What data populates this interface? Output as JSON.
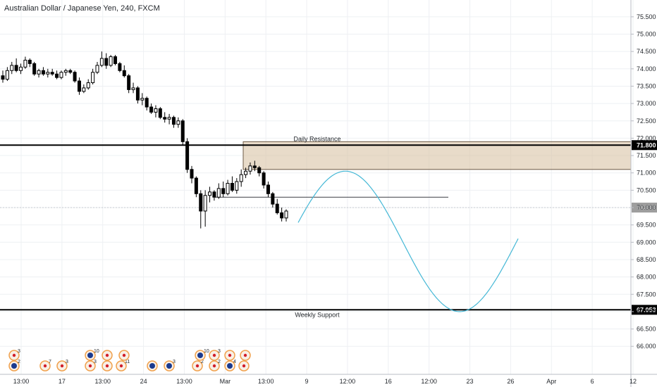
{
  "chart_data": {
    "type": "candlestick",
    "title": "Australian Dollar / Japanese Yen, 240, FXCM",
    "xlabel": "",
    "ylabel": "",
    "ylim": [
      65.7,
      75.7
    ],
    "grid": true,
    "x_ticks": [
      "13:00",
      "17",
      "13:00",
      "24",
      "13:00",
      "Mar",
      "13:00",
      "9",
      "12:00",
      "16",
      "12:00",
      "23",
      "26",
      "Apr",
      "6",
      "12"
    ],
    "y_ticks": [
      "75.500",
      "75.000",
      "74.500",
      "74.000",
      "73.500",
      "73.000",
      "72.500",
      "72.000",
      "71.500",
      "71.000",
      "70.500",
      "70.000",
      "69.500",
      "69.000",
      "68.500",
      "68.000",
      "67.500",
      "67.000",
      "66.500",
      "66.000"
    ],
    "price_levels": [
      {
        "label": "71.800",
        "value": 71.8,
        "color": "#000000"
      },
      {
        "label": "70.000",
        "value": 70.0,
        "color": "#9e9e9e"
      },
      {
        "label": "67.053",
        "value": 67.053,
        "color": "#000000"
      }
    ],
    "zones": [
      {
        "label": "Daily Resistance",
        "from": 71.1,
        "to": 71.9,
        "color": "#d8c3a5"
      }
    ],
    "annotations": [
      {
        "label": "Weekly Support",
        "value": 67.053
      },
      {
        "label": "",
        "value": 70.3,
        "kind": "horizontal-segment"
      }
    ],
    "projection": {
      "kind": "sine-path",
      "start_value": 69.6,
      "peak_value": 71.05,
      "trough_value": 67.0,
      "end_value": 68.7,
      "color": "#45b8d6"
    },
    "series": [
      {
        "values": [
          [
            73.8,
            73.95,
            73.6,
            73.7
          ],
          [
            73.7,
            74.05,
            73.65,
            73.95
          ],
          [
            73.95,
            74.2,
            73.85,
            74.1
          ],
          [
            74.1,
            74.3,
            73.9,
            73.95
          ],
          [
            73.95,
            74.15,
            73.85,
            74.05
          ],
          [
            74.05,
            74.35,
            74.0,
            74.25
          ],
          [
            74.25,
            74.3,
            74.05,
            74.15
          ],
          [
            74.15,
            74.2,
            73.8,
            73.85
          ],
          [
            73.85,
            74.0,
            73.75,
            73.95
          ],
          [
            73.95,
            74.05,
            73.8,
            73.85
          ],
          [
            73.85,
            74.0,
            73.75,
            73.9
          ],
          [
            73.9,
            74.0,
            73.8,
            73.85
          ],
          [
            73.85,
            73.95,
            73.7,
            73.75
          ],
          [
            73.75,
            73.95,
            73.7,
            73.9
          ],
          [
            73.9,
            74.0,
            73.8,
            73.95
          ],
          [
            73.95,
            74.0,
            73.85,
            73.9
          ],
          [
            73.9,
            73.95,
            73.6,
            73.65
          ],
          [
            73.65,
            73.75,
            73.25,
            73.35
          ],
          [
            73.35,
            73.55,
            73.3,
            73.45
          ],
          [
            73.45,
            73.7,
            73.4,
            73.6
          ],
          [
            73.6,
            74.0,
            73.55,
            73.9
          ],
          [
            73.9,
            74.2,
            73.85,
            74.1
          ],
          [
            74.1,
            74.5,
            74.05,
            74.3
          ],
          [
            74.3,
            74.45,
            74.0,
            74.1
          ],
          [
            74.1,
            74.4,
            74.05,
            74.35
          ],
          [
            74.35,
            74.4,
            74.1,
            74.15
          ],
          [
            74.15,
            74.2,
            73.9,
            73.95
          ],
          [
            73.95,
            74.1,
            73.75,
            73.8
          ],
          [
            73.8,
            73.85,
            73.3,
            73.4
          ],
          [
            73.4,
            73.6,
            73.3,
            73.45
          ],
          [
            73.45,
            73.5,
            73.0,
            73.1
          ],
          [
            73.1,
            73.3,
            72.95,
            73.15
          ],
          [
            73.15,
            73.2,
            72.8,
            72.9
          ],
          [
            72.9,
            73.0,
            72.7,
            72.75
          ],
          [
            72.75,
            72.95,
            72.6,
            72.85
          ],
          [
            72.85,
            72.9,
            72.55,
            72.6
          ],
          [
            72.6,
            72.75,
            72.45,
            72.55
          ],
          [
            72.55,
            72.7,
            72.4,
            72.6
          ],
          [
            72.6,
            72.65,
            72.3,
            72.4
          ],
          [
            72.4,
            72.6,
            72.3,
            72.5
          ],
          [
            72.5,
            72.55,
            71.8,
            71.9
          ],
          [
            71.9,
            72.0,
            71.0,
            71.1
          ],
          [
            71.1,
            71.2,
            70.7,
            70.85
          ],
          [
            70.85,
            70.9,
            70.3,
            70.4
          ],
          [
            70.4,
            70.5,
            69.4,
            69.9
          ],
          [
            69.9,
            70.5,
            69.45,
            70.35
          ],
          [
            70.35,
            70.6,
            70.15,
            70.45
          ],
          [
            70.45,
            70.5,
            70.2,
            70.3
          ],
          [
            70.3,
            70.7,
            70.25,
            70.55
          ],
          [
            70.55,
            70.75,
            70.3,
            70.4
          ],
          [
            70.4,
            70.8,
            70.35,
            70.7
          ],
          [
            70.7,
            70.9,
            70.45,
            70.5
          ],
          [
            70.5,
            70.85,
            70.4,
            70.75
          ],
          [
            70.75,
            71.1,
            70.6,
            70.95
          ],
          [
            70.95,
            71.15,
            70.85,
            71.05
          ],
          [
            71.05,
            71.3,
            70.95,
            71.2
          ],
          [
            71.2,
            71.35,
            71.05,
            71.15
          ],
          [
            71.15,
            71.2,
            70.9,
            71.0
          ],
          [
            71.0,
            71.05,
            70.55,
            70.65
          ],
          [
            70.65,
            70.75,
            70.3,
            70.4
          ],
          [
            70.4,
            70.45,
            70.0,
            70.1
          ],
          [
            70.1,
            70.25,
            69.8,
            69.85
          ],
          [
            69.85,
            70.0,
            69.6,
            69.7
          ],
          [
            69.7,
            69.95,
            69.6,
            69.9
          ]
        ]
      }
    ],
    "events": [
      [
        "au",
        "jp",
        "jp",
        "jp",
        "jp",
        "au",
        "jp",
        "jp",
        "jp",
        "jp",
        "au",
        "au",
        "jp",
        "au",
        "jp",
        "jp",
        "au",
        "jp",
        "jp",
        "jp"
      ],
      [
        "2",
        "3",
        "7",
        "3",
        "3",
        "10",
        "",
        "",
        "11",
        "",
        "",
        "3",
        "2",
        "10",
        "2",
        "3",
        "4",
        "",
        "",
        ""
      ]
    ]
  }
}
